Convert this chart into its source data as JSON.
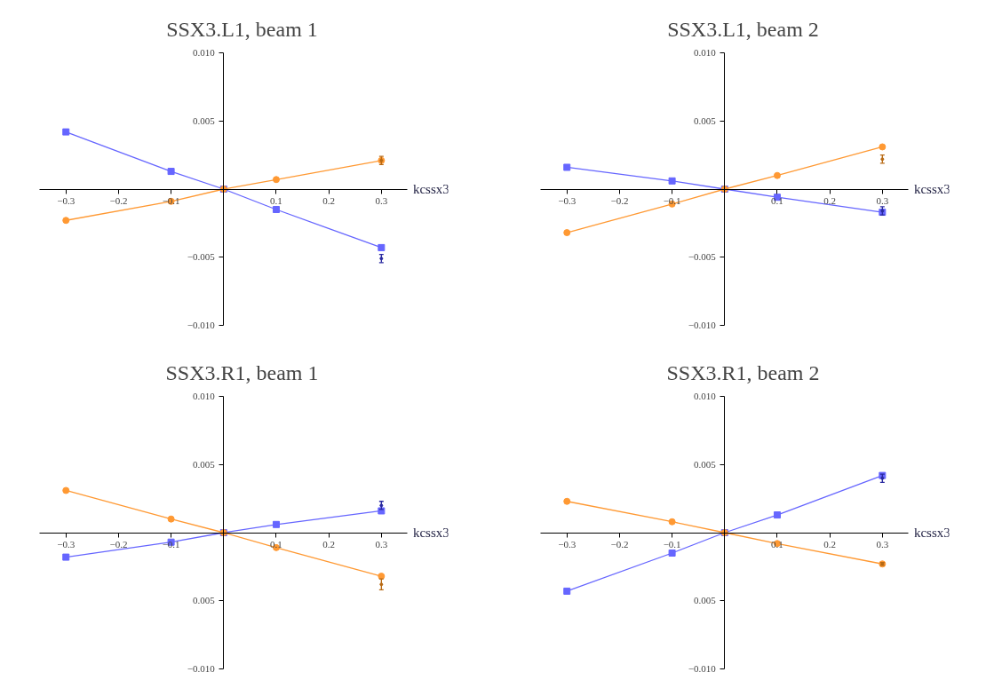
{
  "chart_data": [
    {
      "type": "line",
      "title": "SSX3.L1, beam 1",
      "xlabel": "kcssx3",
      "x": [
        -0.3,
        -0.1,
        0,
        0.1,
        0.3
      ],
      "xlim": [
        -0.35,
        0.35
      ],
      "xticks": [
        {
          "value": -0.3,
          "label": "−0.3"
        },
        {
          "value": -0.2,
          "label": "−0.2"
        },
        {
          "value": -0.1,
          "label": "−0.1"
        },
        0.1,
        0.2,
        0.3
      ],
      "ylim": [
        -0.01,
        0.01
      ],
      "yticks": [
        {
          "value": 0.01,
          "label": "0.010"
        },
        {
          "value": 0.005,
          "label": "0.005"
        },
        {
          "value": -0.005,
          "label": "−0.005"
        },
        {
          "value": -0.01,
          "label": "−0.010"
        }
      ],
      "grid": false,
      "series": [
        {
          "color": "#6666ff",
          "marker": "square",
          "values": [
            0.0042,
            0.0013,
            0,
            -0.0015,
            -0.0043
          ]
        },
        {
          "color": "#ff9933",
          "marker": "circle",
          "values": [
            -0.0023,
            -0.0009,
            0,
            0.0007,
            0.0021
          ]
        },
        {
          "type": "scatter",
          "color": "#2a2aa0",
          "values": [
            null,
            null,
            null,
            null,
            -0.0051
          ],
          "errors": [
            null,
            null,
            null,
            null,
            0.0003
          ]
        },
        {
          "type": "scatter",
          "color": "#b86a14",
          "values": [
            null,
            null,
            null,
            null,
            0.0021
          ],
          "errors": [
            null,
            null,
            null,
            null,
            0.0003
          ]
        }
      ]
    },
    {
      "type": "line",
      "title": "SSX3.L1, beam 2",
      "xlabel": "kcssx3",
      "x": [
        -0.3,
        -0.1,
        0,
        0.1,
        0.3
      ],
      "xlim": [
        -0.35,
        0.35
      ],
      "xticks": [
        {
          "value": -0.3,
          "label": "−0.3"
        },
        {
          "value": -0.2,
          "label": "−0.2"
        },
        {
          "value": -0.1,
          "label": "−0.1"
        },
        0.1,
        0.2,
        0.3
      ],
      "ylim": [
        -0.01,
        0.01
      ],
      "yticks": [
        {
          "value": 0.01,
          "label": "0.010"
        },
        {
          "value": 0.005,
          "label": "0.005"
        },
        {
          "value": -0.005,
          "label": "−0.005"
        },
        {
          "value": -0.01,
          "label": "−0.010"
        }
      ],
      "grid": false,
      "series": [
        {
          "color": "#6666ff",
          "marker": "square",
          "values": [
            0.0016,
            0.0006,
            0,
            -0.0006,
            -0.0017
          ]
        },
        {
          "color": "#ff9933",
          "marker": "circle",
          "values": [
            -0.0032,
            -0.0011,
            0,
            0.001,
            0.0031
          ]
        },
        {
          "type": "scatter",
          "color": "#2a2aa0",
          "values": [
            null,
            null,
            null,
            null,
            -0.0016
          ],
          "errors": [
            null,
            null,
            null,
            null,
            0.0003
          ]
        },
        {
          "type": "scatter",
          "color": "#b86a14",
          "values": [
            null,
            null,
            null,
            null,
            0.0022
          ],
          "errors": [
            null,
            null,
            null,
            null,
            0.0003
          ]
        }
      ]
    },
    {
      "type": "line",
      "title": "SSX3.R1, beam 1",
      "xlabel": "kcssx3",
      "x": [
        -0.3,
        -0.1,
        0,
        0.1,
        0.3
      ],
      "xlim": [
        -0.35,
        0.35
      ],
      "xticks": [
        {
          "value": -0.3,
          "label": "−0.3"
        },
        {
          "value": -0.2,
          "label": "−0.2"
        },
        {
          "value": -0.1,
          "label": "−0.1"
        },
        0.1,
        0.2,
        0.3
      ],
      "ylim": [
        -0.01,
        0.01
      ],
      "yticks": [
        {
          "value": 0.01,
          "label": "0.010"
        },
        {
          "value": 0.005,
          "label": "0.005"
        },
        {
          "value": -0.005,
          "label": "0.005"
        },
        {
          "value": -0.01,
          "label": "−0.010"
        }
      ],
      "grid": false,
      "series": [
        {
          "color": "#6666ff",
          "marker": "square",
          "values": [
            -0.0018,
            -0.0007,
            0,
            0.0006,
            0.0016
          ]
        },
        {
          "color": "#ff9933",
          "marker": "circle",
          "values": [
            0.0031,
            0.001,
            0,
            -0.0011,
            -0.0032
          ]
        },
        {
          "type": "scatter",
          "color": "#2a2aa0",
          "values": [
            null,
            null,
            null,
            null,
            0.002
          ],
          "errors": [
            null,
            null,
            null,
            null,
            0.0003
          ]
        },
        {
          "type": "scatter",
          "color": "#b86a14",
          "values": [
            null,
            null,
            null,
            null,
            -0.0038
          ],
          "errors": [
            null,
            null,
            null,
            null,
            0.0004
          ]
        }
      ]
    },
    {
      "type": "line",
      "title": "SSX3.R1, beam 2",
      "xlabel": "kcssx3",
      "x": [
        -0.3,
        -0.1,
        0,
        0.1,
        0.3
      ],
      "xlim": [
        -0.35,
        0.35
      ],
      "xticks": [
        {
          "value": -0.3,
          "label": "−0.3"
        },
        {
          "value": -0.2,
          "label": "−0.2"
        },
        {
          "value": -0.1,
          "label": "−0.1"
        },
        0.1,
        0.2,
        0.3
      ],
      "ylim": [
        -0.01,
        0.01
      ],
      "yticks": [
        {
          "value": 0.01,
          "label": "0.010"
        },
        {
          "value": 0.005,
          "label": "0.005"
        },
        {
          "value": -0.005,
          "label": "0.005"
        },
        {
          "value": -0.01,
          "label": "−0.010"
        }
      ],
      "grid": false,
      "series": [
        {
          "color": "#6666ff",
          "marker": "square",
          "values": [
            -0.0043,
            -0.0015,
            0,
            0.0013,
            0.0042
          ]
        },
        {
          "color": "#ff9933",
          "marker": "circle",
          "values": [
            0.0023,
            0.0008,
            0,
            -0.0008,
            -0.0023
          ]
        },
        {
          "type": "scatter",
          "color": "#2a2aa0",
          "values": [
            null,
            null,
            null,
            null,
            0.004
          ],
          "errors": [
            null,
            null,
            null,
            null,
            0.0003
          ]
        },
        {
          "type": "scatter",
          "color": "#b86a14",
          "values": [
            null,
            null,
            null,
            null,
            -0.0023
          ],
          "errors": [
            null,
            null,
            null,
            null,
            0.0001
          ]
        }
      ]
    }
  ]
}
